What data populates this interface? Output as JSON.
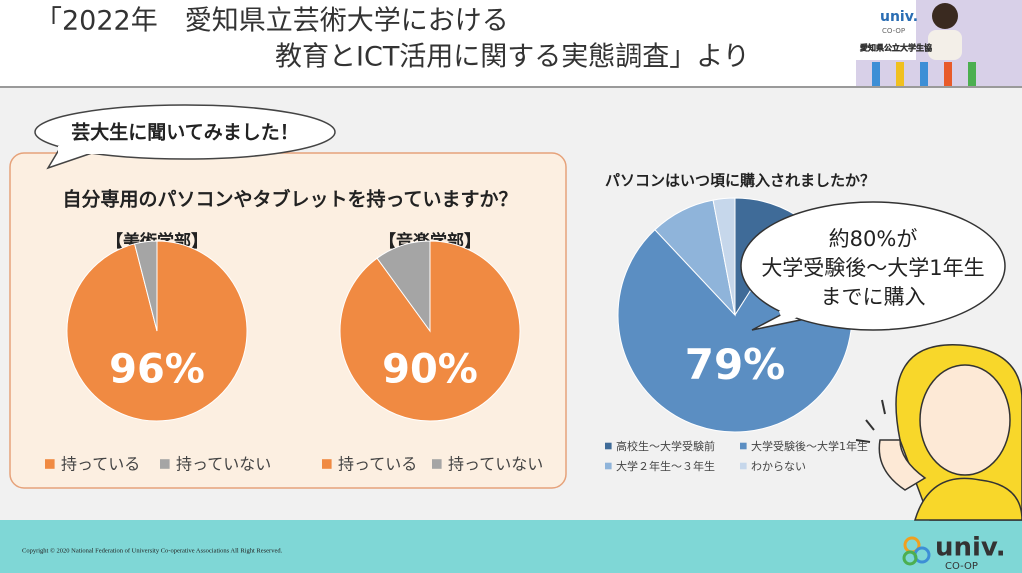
{
  "header": {
    "title_lines": [
      "「2022年　愛知県立芸術大学における",
      "教育とICT活用に関する実態調査」より"
    ]
  },
  "video": {
    "caption": "愛知県公立大学生協",
    "logo": "univ.",
    "logo_sub": "CO-OP"
  },
  "bubble_left": "芸大生に聞いてみました！",
  "panel_title": "自分専用のパソコンやタブレットを持っていますか？",
  "bubble_right": [
    "約80%が",
    "大学受験後～大学1年生",
    "までに購入"
  ],
  "footer": {
    "copyright": "Copyright © 2020 National Federation of University Co-operative Associations All Right Reserved.",
    "logo": "univ.",
    "logo_sub": "CO-OP"
  },
  "chart_data": [
    {
      "type": "pie",
      "title": "【美術学部】",
      "categories": [
        "持っている",
        "持っていない"
      ],
      "values": [
        96,
        4
      ],
      "value_labels": [
        "96%",
        null
      ],
      "colors": [
        "#f08a42",
        "#a5a5a5"
      ],
      "legend": "bottom"
    },
    {
      "type": "pie",
      "title": "【音楽学部】",
      "categories": [
        "持っている",
        "持っていない"
      ],
      "values": [
        90,
        10
      ],
      "value_labels": [
        "90%",
        null
      ],
      "colors": [
        "#f08a42",
        "#a5a5a5"
      ],
      "legend": "bottom"
    },
    {
      "type": "pie",
      "title": "パソコンはいつ頃に購入されましたか？",
      "categories": [
        "高校生～大学受験前",
        "大学受験後～大学1年生",
        "大学２年生～３年生",
        "わからない"
      ],
      "values": [
        9,
        79,
        9,
        3
      ],
      "value_labels": [
        null,
        "79%",
        null,
        null
      ],
      "colors": [
        "#3f6b98",
        "#5b8ec2",
        "#8fb4da",
        "#c6d7eb"
      ],
      "legend": "bottom"
    }
  ]
}
